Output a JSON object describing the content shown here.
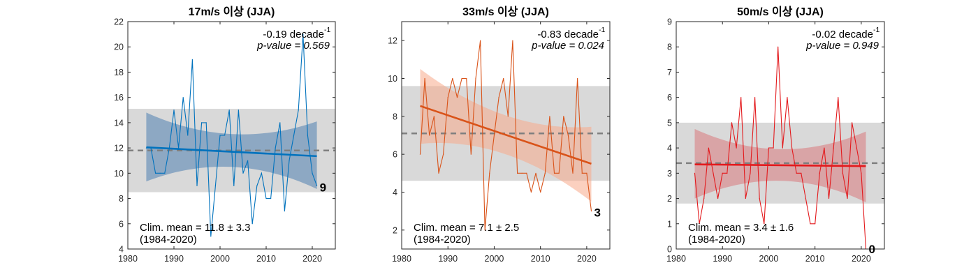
{
  "chart_data": [
    {
      "type": "line",
      "title": "17m/s 이상 (JJA)",
      "xlabel": "",
      "ylabel": "",
      "xlim": [
        1980,
        2025
      ],
      "ylim": [
        4,
        22
      ],
      "xticks": [
        1980,
        1990,
        2000,
        2010,
        2020
      ],
      "yticks": [
        4,
        6,
        8,
        10,
        12,
        14,
        16,
        18,
        20,
        22
      ],
      "grid": false,
      "color": "#0072BD",
      "band_color": "#4f7fb0",
      "series": [
        {
          "name": "annual count",
          "x": [
            1984,
            1985,
            1986,
            1987,
            1988,
            1989,
            1990,
            1991,
            1992,
            1993,
            1994,
            1995,
            1996,
            1997,
            1998,
            1999,
            2000,
            2001,
            2002,
            2003,
            2004,
            2005,
            2006,
            2007,
            2008,
            2009,
            2010,
            2011,
            2012,
            2013,
            2014,
            2015,
            2016,
            2017,
            2018,
            2019,
            2020,
            2021
          ],
          "values": [
            12,
            12,
            10,
            10,
            10,
            12,
            15,
            12,
            16,
            13,
            19,
            9,
            14,
            14,
            5,
            9,
            13,
            13,
            15,
            9,
            15,
            10,
            11,
            6,
            9,
            10,
            8,
            8,
            12,
            14,
            7,
            11,
            13,
            15,
            21,
            13,
            10,
            9
          ]
        }
      ],
      "trend": {
        "x": [
          1984,
          2021
        ],
        "y": [
          12.05,
          11.35
        ],
        "ci_lower": [
          9.35,
          10.5,
          8.75
        ],
        "ci_upper": [
          14.8,
          13.1,
          14.1
        ],
        "ci_x": [
          1984,
          2002.5,
          2021
        ]
      },
      "clim_mean": 11.8,
      "clim_std": 3.3,
      "annotations": {
        "trend_text": "-0.19 decade",
        "trend_sup": "-1",
        "pvalue_text": "p-value = 0.569",
        "clim_text": "Clim. mean = 11.8 ± 3.3",
        "period_text": "(1984-2020)",
        "last_value": "9"
      }
    },
    {
      "type": "line",
      "title": "33m/s 이상 (JJA)",
      "xlabel": "",
      "ylabel": "",
      "xlim": [
        1980,
        2025
      ],
      "ylim": [
        1,
        13
      ],
      "xticks": [
        1980,
        1990,
        2000,
        2010,
        2020
      ],
      "yticks": [
        2,
        4,
        6,
        8,
        10,
        12
      ],
      "grid": false,
      "color": "#D95319",
      "band_color": "#f7a98a",
      "series": [
        {
          "name": "annual count",
          "x": [
            1984,
            1985,
            1986,
            1987,
            1988,
            1989,
            1990,
            1991,
            1992,
            1993,
            1994,
            1995,
            1996,
            1997,
            1998,
            1999,
            2000,
            2001,
            2002,
            2003,
            2004,
            2005,
            2006,
            2007,
            2008,
            2009,
            2010,
            2011,
            2012,
            2013,
            2014,
            2015,
            2016,
            2017,
            2018,
            2019,
            2020,
            2021
          ],
          "values": [
            6,
            10,
            7,
            8,
            5,
            6,
            9,
            10,
            9,
            10,
            10,
            6,
            10,
            12,
            2,
            5,
            7,
            9,
            10,
            8,
            12,
            5,
            5,
            5,
            4,
            5,
            4,
            5,
            8,
            5,
            5,
            8,
            7,
            5,
            10,
            5,
            5,
            3
          ]
        }
      ],
      "trend": {
        "x": [
          1984,
          2021
        ],
        "y": [
          8.55,
          5.5
        ],
        "ci_lower": [
          6.55,
          6.0,
          3.5
        ],
        "ci_upper": [
          10.5,
          8.05,
          7.45
        ],
        "ci_x": [
          1984,
          2002.5,
          2021
        ]
      },
      "clim_mean": 7.1,
      "clim_std": 2.5,
      "annotations": {
        "trend_text": "-0.83 decade",
        "trend_sup": "-1",
        "pvalue_text": "p-value = 0.024",
        "clim_text": "Clim. mean = 7.1 ± 2.5",
        "period_text": "(1984-2020)",
        "last_value": "3"
      }
    },
    {
      "type": "line",
      "title": "50m/s 이상 (JJA)",
      "xlabel": "",
      "ylabel": "",
      "xlim": [
        1980,
        2025
      ],
      "ylim": [
        0,
        9
      ],
      "xticks": [
        1980,
        1990,
        2000,
        2010,
        2020
      ],
      "yticks": [
        0,
        1,
        2,
        3,
        4,
        5,
        6,
        7,
        8,
        9
      ],
      "grid": false,
      "color": "#E3191C",
      "band_color": "#d9797b",
      "series": [
        {
          "name": "annual count",
          "x": [
            1984,
            1985,
            1986,
            1987,
            1988,
            1989,
            1990,
            1991,
            1992,
            1993,
            1994,
            1995,
            1996,
            1997,
            1998,
            1999,
            2000,
            2001,
            2002,
            2003,
            2004,
            2005,
            2006,
            2007,
            2008,
            2009,
            2010,
            2011,
            2012,
            2013,
            2014,
            2015,
            2016,
            2017,
            2018,
            2019,
            2020,
            2021
          ],
          "values": [
            3,
            1,
            2,
            4,
            3,
            2,
            3,
            3,
            5,
            4,
            6,
            2,
            3,
            6,
            2,
            1,
            4,
            4,
            8,
            4,
            6,
            4,
            3,
            3,
            2,
            1,
            1,
            3,
            4,
            2,
            4,
            6,
            3,
            2,
            5,
            4,
            3,
            0
          ]
        }
      ],
      "trend": {
        "x": [
          1984,
          2021
        ],
        "y": [
          3.35,
          3.28
        ],
        "ci_lower": [
          2.0,
          2.7,
          1.85
        ],
        "ci_upper": [
          4.75,
          3.95,
          4.65
        ],
        "ci_x": [
          1984,
          2002.5,
          2021
        ]
      },
      "clim_mean": 3.4,
      "clim_std": 1.6,
      "annotations": {
        "trend_text": "-0.02 decade",
        "trend_sup": "-1",
        "pvalue_text": "p-value = 0.949",
        "clim_text": "Clim. mean = 3.4 ± 1.6",
        "period_text": "(1984-2020)",
        "last_value": "0"
      }
    }
  ]
}
